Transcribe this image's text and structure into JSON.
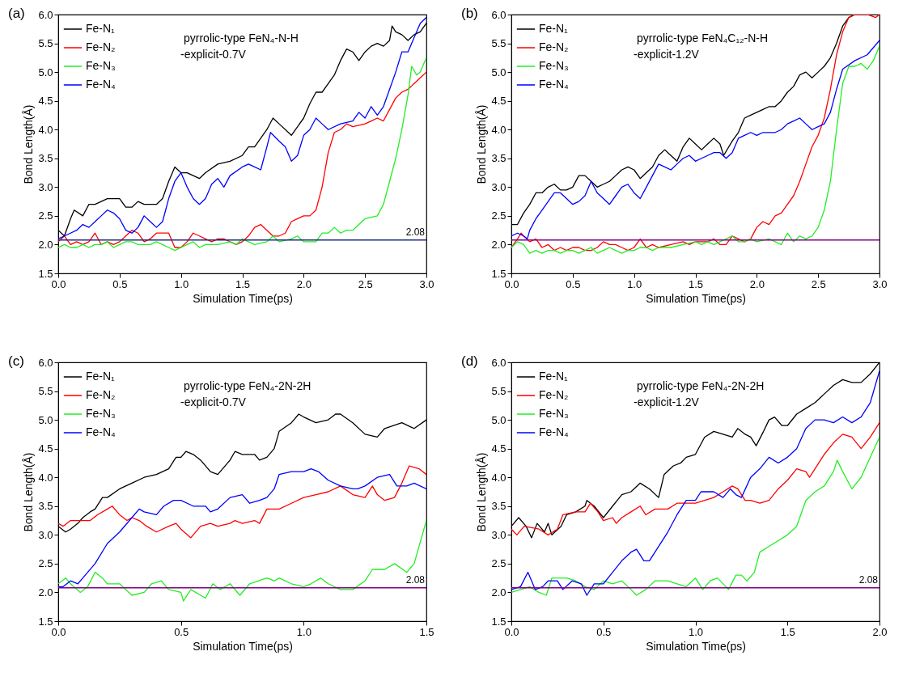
{
  "chart_data": [
    {
      "type": "line",
      "title": "(a)",
      "xlabel": "Simulation Time(ps)",
      "ylabel": "Bond Length(Å)",
      "annotations": [
        "pyrrolic-type FeN₄-N-H",
        "-explicit-0.7V"
      ],
      "legend": "top left",
      "xlim": [
        0,
        3
      ],
      "ylim": [
        1.5,
        6
      ],
      "xticks": [
        {
          "value": 0,
          "label": "0.0"
        },
        0.5,
        {
          "value": 1,
          "label": "1.0"
        },
        1.5,
        {
          "value": 2,
          "label": "2.0"
        },
        2.5,
        {
          "value": 3,
          "label": "3.0"
        }
      ],
      "yticks": [
        1.5,
        {
          "value": 2,
          "label": "2.0"
        },
        2.5,
        {
          "value": 3,
          "label": "3.0"
        },
        3.5,
        {
          "value": 4,
          "label": "4.0"
        },
        4.5,
        {
          "value": 5,
          "label": "5.0"
        },
        5.5,
        {
          "value": 6,
          "label": "6.0"
        }
      ],
      "ref_lines": [
        {
          "axis": "y",
          "value": 2.08,
          "label": "2.08",
          "color": "#1f2a80"
        }
      ],
      "series": [
        {
          "name": "Fe-N₁",
          "color": "#000000",
          "x": [
            0,
            0.05,
            0.1,
            0.13,
            0.2,
            0.25,
            0.3,
            0.35,
            0.4,
            0.45,
            0.5,
            0.55,
            0.6,
            0.65,
            0.7,
            0.8,
            0.85,
            0.9,
            0.95,
            1.0,
            1.05,
            1.1,
            1.15,
            1.2,
            1.3,
            1.4,
            1.5,
            1.55,
            1.6,
            1.7,
            1.75,
            1.8,
            1.9,
            1.95,
            2.0,
            2.05,
            2.1,
            2.15,
            2.2,
            2.25,
            2.3,
            2.35,
            2.4,
            2.45,
            2.5,
            2.55,
            2.6,
            2.65,
            2.7,
            2.72,
            2.75,
            2.8,
            2.85,
            2.9,
            2.95,
            3.0
          ],
          "values": [
            2.25,
            2.15,
            2.45,
            2.6,
            2.5,
            2.7,
            2.7,
            2.75,
            2.8,
            2.8,
            2.8,
            2.65,
            2.65,
            2.75,
            2.7,
            2.7,
            2.8,
            3.1,
            3.35,
            3.25,
            3.25,
            3.2,
            3.15,
            3.25,
            3.4,
            3.45,
            3.55,
            3.7,
            3.7,
            4.0,
            4.2,
            4.1,
            3.9,
            4.05,
            4.2,
            4.45,
            4.65,
            4.65,
            4.8,
            4.95,
            5.2,
            5.4,
            5.35,
            5.2,
            5.35,
            5.45,
            5.5,
            5.45,
            5.55,
            5.8,
            5.7,
            5.65,
            5.55,
            5.65,
            5.7,
            5.85
          ]
        },
        {
          "name": "Fe-N₂",
          "color": "#ff0000",
          "x": [
            0,
            0.05,
            0.1,
            0.15,
            0.2,
            0.25,
            0.3,
            0.35,
            0.4,
            0.45,
            0.5,
            0.55,
            0.6,
            0.65,
            0.7,
            0.75,
            0.8,
            0.85,
            0.9,
            0.95,
            1.0,
            1.05,
            1.1,
            1.15,
            1.2,
            1.25,
            1.3,
            1.35,
            1.4,
            1.45,
            1.5,
            1.55,
            1.6,
            1.65,
            1.7,
            1.75,
            1.8,
            1.85,
            1.9,
            1.95,
            2.0,
            2.05,
            2.1,
            2.15,
            2.2,
            2.25,
            2.3,
            2.35,
            2.4,
            2.5,
            2.55,
            2.6,
            2.65,
            2.7,
            2.75,
            2.8,
            2.85,
            2.9,
            2.95,
            3.0
          ],
          "values": [
            2.05,
            2.15,
            2.0,
            2.05,
            2.0,
            2.05,
            2.2,
            2.0,
            2.05,
            2.0,
            2.05,
            2.15,
            2.25,
            2.2,
            2.05,
            2.1,
            2.2,
            2.2,
            2.2,
            1.95,
            1.95,
            2.05,
            2.2,
            2.15,
            2.1,
            2.05,
            2.1,
            2.1,
            2.05,
            2.0,
            2.05,
            2.15,
            2.3,
            2.35,
            2.25,
            2.15,
            2.15,
            2.2,
            2.4,
            2.45,
            2.5,
            2.5,
            2.6,
            3.0,
            3.6,
            3.95,
            4.0,
            4.1,
            4.05,
            4.1,
            4.15,
            4.2,
            4.15,
            4.35,
            4.55,
            4.65,
            4.7,
            4.8,
            4.9,
            5.0
          ]
        },
        {
          "name": "Fe-N₃",
          "color": "#22ee22",
          "x": [
            0,
            0.05,
            0.1,
            0.15,
            0.2,
            0.25,
            0.3,
            0.35,
            0.4,
            0.45,
            0.5,
            0.55,
            0.6,
            0.65,
            0.7,
            0.75,
            0.8,
            0.85,
            0.9,
            0.95,
            1.0,
            1.05,
            1.1,
            1.15,
            1.2,
            1.3,
            1.4,
            1.45,
            1.5,
            1.55,
            1.6,
            1.7,
            1.75,
            1.8,
            1.9,
            1.95,
            2.0,
            2.1,
            2.15,
            2.2,
            2.25,
            2.3,
            2.35,
            2.4,
            2.45,
            2.5,
            2.6,
            2.65,
            2.7,
            2.75,
            2.8,
            2.85,
            2.88,
            2.92,
            2.95,
            3.0
          ],
          "values": [
            1.95,
            2.0,
            1.95,
            1.95,
            2.0,
            1.95,
            2.0,
            2.0,
            2.05,
            1.95,
            2.0,
            2.05,
            2.05,
            2.0,
            2.0,
            2.0,
            2.05,
            2.0,
            1.95,
            1.9,
            1.95,
            2.0,
            2.05,
            1.95,
            2.0,
            2.0,
            2.05,
            2.0,
            2.1,
            2.05,
            2.0,
            2.05,
            2.15,
            2.05,
            2.1,
            2.15,
            2.05,
            2.05,
            2.2,
            2.2,
            2.3,
            2.2,
            2.25,
            2.25,
            2.35,
            2.45,
            2.5,
            2.7,
            3.1,
            3.5,
            4.0,
            4.6,
            5.1,
            4.95,
            5.0,
            5.25
          ]
        },
        {
          "name": "Fe-N₄",
          "color": "#0000ff",
          "x": [
            0,
            0.05,
            0.1,
            0.15,
            0.2,
            0.25,
            0.3,
            0.35,
            0.4,
            0.45,
            0.5,
            0.55,
            0.6,
            0.65,
            0.7,
            0.75,
            0.8,
            0.85,
            0.9,
            0.95,
            1.0,
            1.05,
            1.1,
            1.15,
            1.2,
            1.25,
            1.3,
            1.35,
            1.4,
            1.5,
            1.55,
            1.6,
            1.65,
            1.7,
            1.73,
            1.8,
            1.85,
            1.9,
            1.95,
            2.0,
            2.05,
            2.1,
            2.15,
            2.2,
            2.3,
            2.4,
            2.45,
            2.5,
            2.55,
            2.6,
            2.65,
            2.7,
            2.75,
            2.8,
            2.85,
            2.9,
            2.95,
            3.0
          ],
          "values": [
            2.1,
            2.15,
            2.2,
            2.25,
            2.35,
            2.3,
            2.4,
            2.5,
            2.6,
            2.55,
            2.45,
            2.25,
            2.2,
            2.3,
            2.5,
            2.4,
            2.3,
            2.4,
            2.8,
            3.1,
            3.25,
            3.0,
            2.8,
            2.7,
            2.8,
            3.05,
            3.15,
            3.0,
            3.2,
            3.35,
            3.4,
            3.35,
            3.3,
            3.7,
            3.95,
            3.8,
            3.7,
            3.45,
            3.55,
            3.9,
            4.0,
            4.2,
            4.1,
            4.0,
            4.1,
            4.15,
            4.3,
            4.2,
            4.4,
            4.25,
            4.4,
            4.7,
            5.0,
            5.35,
            5.35,
            5.6,
            5.85,
            5.95
          ]
        }
      ]
    },
    {
      "type": "line",
      "title": "(b)",
      "xlabel": "Simulation Time(ps)",
      "ylabel": "Bond Length(Å)",
      "annotations": [
        "pyrrolic-type FeN₄C₁₂-N-H",
        "-explicit-1.2V"
      ],
      "legend": "top left",
      "xlim": [
        0,
        3
      ],
      "ylim": [
        1.5,
        6
      ],
      "xticks": [
        {
          "value": 0,
          "label": "0.0"
        },
        0.5,
        {
          "value": 1,
          "label": "1.0"
        },
        1.5,
        {
          "value": 2,
          "label": "2.0"
        },
        2.5,
        {
          "value": 3,
          "label": "3.0"
        }
      ],
      "yticks": [
        1.5,
        {
          "value": 2,
          "label": "2.0"
        },
        2.5,
        {
          "value": 3,
          "label": "3.0"
        },
        3.5,
        {
          "value": 4,
          "label": "4.0"
        },
        4.5,
        {
          "value": 5,
          "label": "5.0"
        },
        5.5,
        {
          "value": 6,
          "label": "6.0"
        }
      ],
      "ref_lines": [
        {
          "axis": "y",
          "value": 2.08,
          "label": null,
          "color": "#800080"
        }
      ],
      "series": [
        {
          "name": "Fe-N₁",
          "color": "#000000",
          "x": [
            0,
            0.05,
            0.1,
            0.15,
            0.2,
            0.25,
            0.3,
            0.35,
            0.4,
            0.45,
            0.5,
            0.55,
            0.6,
            0.65,
            0.7,
            0.75,
            0.8,
            0.85,
            0.9,
            0.95,
            1.0,
            1.05,
            1.1,
            1.15,
            1.2,
            1.25,
            1.3,
            1.35,
            1.4,
            1.45,
            1.5,
            1.55,
            1.6,
            1.65,
            1.7,
            1.73,
            1.8,
            1.85,
            1.9,
            1.95,
            2.0,
            2.05,
            2.1,
            2.15,
            2.2,
            2.25,
            2.3,
            2.35,
            2.4,
            2.45,
            2.5,
            2.55,
            2.6,
            2.65,
            2.7,
            2.75,
            2.8
          ],
          "values": [
            2.35,
            2.35,
            2.55,
            2.7,
            2.9,
            2.9,
            3.0,
            3.05,
            2.95,
            2.95,
            3.0,
            3.2,
            3.2,
            3.1,
            3.0,
            3.05,
            3.1,
            3.2,
            3.3,
            3.35,
            3.3,
            3.15,
            3.25,
            3.35,
            3.55,
            3.65,
            3.55,
            3.45,
            3.7,
            3.85,
            3.75,
            3.65,
            3.75,
            3.85,
            3.75,
            3.55,
            3.8,
            3.95,
            4.2,
            4.25,
            4.3,
            4.35,
            4.4,
            4.4,
            4.5,
            4.65,
            4.75,
            4.95,
            5.0,
            4.9,
            5.0,
            5.1,
            5.25,
            5.5,
            5.8,
            5.95,
            6.0
          ]
        },
        {
          "name": "Fe-N₂",
          "color": "#ff0000",
          "x": [
            0,
            0.05,
            0.08,
            0.1,
            0.15,
            0.2,
            0.25,
            0.3,
            0.35,
            0.4,
            0.45,
            0.5,
            0.55,
            0.6,
            0.65,
            0.7,
            0.75,
            0.8,
            0.85,
            0.9,
            0.95,
            1.0,
            1.05,
            1.1,
            1.15,
            1.2,
            1.3,
            1.4,
            1.45,
            1.5,
            1.6,
            1.65,
            1.7,
            1.75,
            1.8,
            1.85,
            1.9,
            1.95,
            2.0,
            2.05,
            2.1,
            2.15,
            2.2,
            2.25,
            2.3,
            2.35,
            2.4,
            2.45,
            2.5,
            2.55,
            2.6,
            2.65,
            2.7,
            2.75,
            2.8,
            2.9,
            2.97,
            3.0
          ],
          "values": [
            1.95,
            2.1,
            2.2,
            2.15,
            2.05,
            2.1,
            1.95,
            2.0,
            1.9,
            1.95,
            1.9,
            1.95,
            1.95,
            1.9,
            1.9,
            1.95,
            2.05,
            2.0,
            2.0,
            1.95,
            1.9,
            1.95,
            2.1,
            1.95,
            2.0,
            1.95,
            2.0,
            2.05,
            2.0,
            2.05,
            2.05,
            2.1,
            2.0,
            2.0,
            2.15,
            2.1,
            2.05,
            2.1,
            2.3,
            2.4,
            2.35,
            2.5,
            2.55,
            2.7,
            2.85,
            3.1,
            3.4,
            3.7,
            3.9,
            4.2,
            4.7,
            5.3,
            5.7,
            5.95,
            6.0,
            6.0,
            5.95,
            6.0
          ]
        },
        {
          "name": "Fe-N₃",
          "color": "#22ee22",
          "x": [
            0,
            0.05,
            0.1,
            0.15,
            0.2,
            0.25,
            0.3,
            0.35,
            0.4,
            0.45,
            0.5,
            0.55,
            0.6,
            0.65,
            0.7,
            0.75,
            0.8,
            0.85,
            0.9,
            0.95,
            1.0,
            1.05,
            1.1,
            1.15,
            1.2,
            1.3,
            1.4,
            1.5,
            1.55,
            1.6,
            1.65,
            1.7,
            1.75,
            1.8,
            1.85,
            1.9,
            1.95,
            2.0,
            2.1,
            2.15,
            2.2,
            2.25,
            2.3,
            2.35,
            2.4,
            2.45,
            2.5,
            2.55,
            2.6,
            2.65,
            2.7,
            2.75,
            2.8,
            2.85,
            2.9,
            2.95,
            3.0
          ],
          "values": [
            1.95,
            2.05,
            2.0,
            1.85,
            1.9,
            1.85,
            1.9,
            1.9,
            1.85,
            1.9,
            1.9,
            1.85,
            1.9,
            1.95,
            1.85,
            1.9,
            1.95,
            1.9,
            1.85,
            1.9,
            1.9,
            1.95,
            1.95,
            1.9,
            1.95,
            1.95,
            2.0,
            2.05,
            2.0,
            2.05,
            2.0,
            2.05,
            2.1,
            2.15,
            2.05,
            2.05,
            2.1,
            2.05,
            2.1,
            2.05,
            2.0,
            2.2,
            2.05,
            2.15,
            2.1,
            2.15,
            2.3,
            2.6,
            3.1,
            4.0,
            4.8,
            5.1,
            5.1,
            5.15,
            5.05,
            5.2,
            5.45
          ]
        },
        {
          "name": "Fe-N₄",
          "color": "#0000ff",
          "x": [
            0,
            0.05,
            0.1,
            0.13,
            0.15,
            0.2,
            0.25,
            0.3,
            0.35,
            0.4,
            0.45,
            0.5,
            0.55,
            0.6,
            0.65,
            0.7,
            0.75,
            0.8,
            0.85,
            0.9,
            0.95,
            1.0,
            1.05,
            1.1,
            1.15,
            1.2,
            1.25,
            1.3,
            1.35,
            1.4,
            1.45,
            1.5,
            1.55,
            1.6,
            1.65,
            1.7,
            1.75,
            1.8,
            1.85,
            1.9,
            1.95,
            2.0,
            2.05,
            2.1,
            2.15,
            2.2,
            2.25,
            2.3,
            2.35,
            2.4,
            2.45,
            2.5,
            2.55,
            2.6,
            2.65,
            2.7,
            2.8,
            2.9,
            3.0
          ],
          "values": [
            2.15,
            2.2,
            2.15,
            2.1,
            2.25,
            2.45,
            2.6,
            2.75,
            2.9,
            2.9,
            2.8,
            2.7,
            2.75,
            2.85,
            3.1,
            2.9,
            2.8,
            2.7,
            2.85,
            3.0,
            3.05,
            2.9,
            2.8,
            3.0,
            3.2,
            3.4,
            3.35,
            3.3,
            3.4,
            3.5,
            3.55,
            3.45,
            3.5,
            3.55,
            3.6,
            3.6,
            3.5,
            3.6,
            3.85,
            3.9,
            3.95,
            3.9,
            3.95,
            3.95,
            3.95,
            4.0,
            4.1,
            4.15,
            4.2,
            4.1,
            4.0,
            4.05,
            4.1,
            4.3,
            4.7,
            5.05,
            5.2,
            5.3,
            5.55
          ]
        }
      ]
    },
    {
      "type": "line",
      "title": "(c)",
      "xlabel": "Simulation Time(ps)",
      "ylabel": "Bond Length(Å)",
      "annotations": [
        "pyrrolic-type FeN₄-2N-2H",
        "-explicit-0.7V"
      ],
      "legend": "top left",
      "xlim": [
        0,
        1.5
      ],
      "ylim": [
        1.5,
        6
      ],
      "xticks": [
        {
          "value": 0,
          "label": "0.0"
        },
        0.5,
        {
          "value": 1,
          "label": "1.0"
        },
        1.5
      ],
      "yticks": [
        1.5,
        {
          "value": 2,
          "label": "2.0"
        },
        2.5,
        {
          "value": 3,
          "label": "3.0"
        },
        3.5,
        {
          "value": 4,
          "label": "4.0"
        },
        4.5,
        {
          "value": 5,
          "label": "5.0"
        },
        5.5,
        {
          "value": 6,
          "label": "6.0"
        }
      ],
      "ref_lines": [
        {
          "axis": "y",
          "value": 2.08,
          "label": "2.08",
          "color": "#800080"
        }
      ],
      "series": [
        {
          "name": "Fe-N₁",
          "color": "#000000",
          "x": [
            0,
            0.03,
            0.05,
            0.08,
            0.1,
            0.13,
            0.15,
            0.18,
            0.2,
            0.25,
            0.3,
            0.35,
            0.4,
            0.45,
            0.48,
            0.5,
            0.52,
            0.55,
            0.58,
            0.62,
            0.65,
            0.7,
            0.72,
            0.75,
            0.8,
            0.82,
            0.85,
            0.88,
            0.9,
            0.95,
            0.98,
            1.0,
            1.05,
            1.1,
            1.13,
            1.15,
            1.2,
            1.25,
            1.3,
            1.33,
            1.4,
            1.45,
            1.5
          ],
          "values": [
            3.15,
            3.05,
            3.1,
            3.2,
            3.3,
            3.4,
            3.45,
            3.65,
            3.65,
            3.8,
            3.9,
            4.0,
            4.05,
            4.15,
            4.35,
            4.35,
            4.45,
            4.4,
            4.3,
            4.1,
            4.05,
            4.3,
            4.45,
            4.4,
            4.4,
            4.3,
            4.35,
            4.5,
            4.8,
            4.95,
            5.1,
            5.05,
            4.95,
            5.0,
            5.1,
            5.1,
            4.95,
            4.75,
            4.7,
            4.85,
            4.95,
            4.85,
            5.0
          ]
        },
        {
          "name": "Fe-N₂",
          "color": "#ff0000",
          "x": [
            0,
            0.02,
            0.05,
            0.1,
            0.13,
            0.16,
            0.2,
            0.22,
            0.25,
            0.28,
            0.3,
            0.33,
            0.36,
            0.4,
            0.45,
            0.48,
            0.5,
            0.54,
            0.58,
            0.62,
            0.65,
            0.7,
            0.72,
            0.75,
            0.8,
            0.82,
            0.85,
            0.9,
            0.95,
            1.0,
            1.05,
            1.1,
            1.15,
            1.2,
            1.25,
            1.28,
            1.3,
            1.33,
            1.37,
            1.4,
            1.43,
            1.47,
            1.5
          ],
          "values": [
            3.2,
            3.15,
            3.25,
            3.25,
            3.25,
            3.35,
            3.45,
            3.5,
            3.35,
            3.25,
            3.3,
            3.25,
            3.15,
            3.05,
            3.15,
            3.2,
            3.1,
            2.95,
            3.15,
            3.2,
            3.15,
            3.2,
            3.25,
            3.2,
            3.25,
            3.2,
            3.45,
            3.45,
            3.55,
            3.65,
            3.7,
            3.75,
            3.85,
            3.7,
            3.65,
            3.85,
            3.7,
            3.6,
            3.65,
            3.9,
            4.2,
            4.15,
            4.05
          ]
        },
        {
          "name": "Fe-N₃",
          "color": "#22ee22",
          "x": [
            0,
            0.03,
            0.05,
            0.09,
            0.12,
            0.15,
            0.18,
            0.2,
            0.25,
            0.3,
            0.35,
            0.38,
            0.42,
            0.45,
            0.5,
            0.51,
            0.54,
            0.58,
            0.6,
            0.63,
            0.66,
            0.7,
            0.74,
            0.78,
            0.85,
            0.88,
            0.9,
            0.95,
            1.0,
            1.03,
            1.07,
            1.1,
            1.15,
            1.2,
            1.25,
            1.28,
            1.33,
            1.37,
            1.42,
            1.45,
            1.48,
            1.5
          ],
          "values": [
            2.15,
            2.25,
            2.15,
            2.0,
            2.1,
            2.35,
            2.25,
            2.15,
            2.15,
            1.95,
            2.0,
            2.15,
            2.2,
            2.05,
            2.0,
            1.85,
            2.05,
            1.95,
            1.9,
            2.15,
            2.05,
            2.15,
            1.95,
            2.15,
            2.25,
            2.2,
            2.25,
            2.15,
            2.1,
            2.15,
            2.25,
            2.15,
            2.05,
            2.05,
            2.2,
            2.4,
            2.4,
            2.5,
            2.35,
            2.5,
            2.95,
            3.25
          ]
        },
        {
          "name": "Fe-N₄",
          "color": "#0000ff",
          "x": [
            0,
            0.02,
            0.05,
            0.08,
            0.1,
            0.15,
            0.2,
            0.25,
            0.3,
            0.33,
            0.35,
            0.4,
            0.43,
            0.47,
            0.5,
            0.55,
            0.6,
            0.62,
            0.65,
            0.7,
            0.75,
            0.78,
            0.82,
            0.85,
            0.88,
            0.9,
            0.95,
            1.0,
            1.03,
            1.06,
            1.1,
            1.15,
            1.2,
            1.22,
            1.25,
            1.3,
            1.35,
            1.38,
            1.42,
            1.45,
            1.5
          ],
          "values": [
            2.1,
            2.1,
            2.2,
            2.15,
            2.25,
            2.5,
            2.85,
            3.05,
            3.3,
            3.45,
            3.4,
            3.35,
            3.5,
            3.6,
            3.6,
            3.5,
            3.5,
            3.4,
            3.45,
            3.65,
            3.7,
            3.55,
            3.6,
            3.65,
            3.8,
            4.05,
            4.1,
            4.1,
            4.15,
            4.1,
            3.95,
            3.85,
            3.8,
            3.8,
            3.85,
            4.0,
            4.05,
            3.85,
            3.85,
            3.9,
            3.8
          ]
        }
      ]
    },
    {
      "type": "line",
      "title": "(d)",
      "xlabel": "Simulation Time(ps)",
      "ylabel": "Bond Length(Å)",
      "annotations": [
        "pyrrolic-type FeN₄-2N-2H",
        "-explicit-1.2V"
      ],
      "legend": "top left",
      "xlim": [
        0,
        2
      ],
      "ylim": [
        1.5,
        6
      ],
      "xticks": [
        {
          "value": 0,
          "label": "0.0"
        },
        0.5,
        {
          "value": 1,
          "label": "1.0"
        },
        1.5,
        {
          "value": 2,
          "label": "2.0"
        }
      ],
      "yticks": [
        1.5,
        {
          "value": 2,
          "label": "2.0"
        },
        2.5,
        {
          "value": 3,
          "label": "3.0"
        },
        3.5,
        {
          "value": 4,
          "label": "4.0"
        },
        4.5,
        {
          "value": 5,
          "label": "5.0"
        },
        5.5,
        {
          "value": 6,
          "label": "6.0"
        }
      ],
      "ref_lines": [
        {
          "axis": "y",
          "value": 2.08,
          "label": "2.08",
          "color": "#800080"
        }
      ],
      "series": [
        {
          "name": "Fe-N₁",
          "color": "#000000",
          "x": [
            0,
            0.04,
            0.08,
            0.11,
            0.14,
            0.18,
            0.2,
            0.22,
            0.27,
            0.3,
            0.35,
            0.4,
            0.41,
            0.45,
            0.5,
            0.55,
            0.6,
            0.65,
            0.7,
            0.75,
            0.8,
            0.83,
            0.88,
            0.92,
            0.95,
            1.0,
            1.05,
            1.1,
            1.15,
            1.2,
            1.23,
            1.27,
            1.3,
            1.33,
            1.37,
            1.4,
            1.43,
            1.47,
            1.5,
            1.55,
            1.6,
            1.65,
            1.7,
            1.75,
            1.8,
            1.85,
            1.9,
            1.95,
            2.0
          ],
          "values": [
            3.15,
            3.3,
            3.15,
            2.95,
            3.2,
            3.05,
            3.2,
            3.0,
            3.15,
            3.35,
            3.4,
            3.5,
            3.6,
            3.5,
            3.3,
            3.5,
            3.7,
            3.75,
            3.9,
            3.8,
            3.65,
            4.05,
            4.2,
            4.25,
            4.35,
            4.4,
            4.7,
            4.8,
            4.75,
            4.7,
            4.85,
            4.75,
            4.7,
            4.55,
            4.8,
            5.0,
            5.05,
            4.9,
            4.9,
            5.1,
            5.2,
            5.3,
            5.45,
            5.6,
            5.7,
            5.65,
            5.65,
            5.8,
            6.0
          ]
        },
        {
          "name": "Fe-N₂",
          "color": "#ff0000",
          "x": [
            0,
            0.03,
            0.07,
            0.15,
            0.2,
            0.25,
            0.28,
            0.35,
            0.4,
            0.43,
            0.47,
            0.5,
            0.55,
            0.57,
            0.6,
            0.65,
            0.7,
            0.73,
            0.78,
            0.85,
            0.9,
            0.95,
            1.0,
            1.05,
            1.1,
            1.15,
            1.2,
            1.23,
            1.27,
            1.3,
            1.35,
            1.4,
            1.45,
            1.5,
            1.55,
            1.6,
            1.62,
            1.67,
            1.7,
            1.75,
            1.8,
            1.85,
            1.9,
            1.95,
            2.0
          ],
          "values": [
            3.1,
            3.0,
            3.15,
            3.1,
            3.0,
            3.1,
            3.35,
            3.4,
            3.4,
            3.55,
            3.4,
            3.25,
            3.3,
            3.2,
            3.3,
            3.4,
            3.5,
            3.35,
            3.45,
            3.45,
            3.55,
            3.55,
            3.55,
            3.6,
            3.65,
            3.75,
            3.85,
            3.8,
            3.6,
            3.6,
            3.55,
            3.6,
            3.8,
            3.95,
            4.15,
            4.1,
            4.0,
            4.25,
            4.4,
            4.6,
            4.75,
            4.7,
            4.5,
            4.7,
            4.95
          ]
        },
        {
          "name": "Fe-N₃",
          "color": "#22ee22",
          "x": [
            0,
            0.05,
            0.1,
            0.15,
            0.19,
            0.22,
            0.3,
            0.35,
            0.4,
            0.45,
            0.5,
            0.55,
            0.6,
            0.65,
            0.68,
            0.73,
            0.78,
            0.85,
            0.9,
            0.95,
            1.0,
            1.04,
            1.08,
            1.12,
            1.18,
            1.22,
            1.25,
            1.28,
            1.32,
            1.35,
            1.4,
            1.45,
            1.5,
            1.55,
            1.6,
            1.65,
            1.7,
            1.75,
            1.77,
            1.8,
            1.85,
            1.9,
            1.95,
            2.0
          ],
          "values": [
            2.0,
            2.05,
            2.1,
            2.0,
            1.95,
            2.25,
            2.25,
            2.2,
            2.1,
            2.05,
            2.2,
            2.15,
            2.2,
            2.05,
            1.95,
            2.05,
            2.2,
            2.2,
            2.15,
            2.1,
            2.25,
            2.05,
            2.2,
            2.25,
            2.05,
            2.3,
            2.3,
            2.2,
            2.35,
            2.7,
            2.8,
            2.9,
            3.0,
            3.15,
            3.6,
            3.75,
            3.85,
            4.1,
            4.3,
            4.1,
            3.8,
            4.0,
            4.35,
            4.7
          ]
        },
        {
          "name": "Fe-N₄",
          "color": "#0000ff",
          "x": [
            0,
            0.05,
            0.09,
            0.13,
            0.17,
            0.2,
            0.25,
            0.28,
            0.33,
            0.38,
            0.41,
            0.45,
            0.5,
            0.55,
            0.6,
            0.65,
            0.68,
            0.72,
            0.75,
            0.8,
            0.85,
            0.9,
            0.95,
            1.0,
            1.03,
            1.07,
            1.1,
            1.15,
            1.19,
            1.22,
            1.25,
            1.3,
            1.35,
            1.4,
            1.45,
            1.5,
            1.55,
            1.6,
            1.65,
            1.7,
            1.75,
            1.8,
            1.85,
            1.9,
            1.95,
            2.0
          ],
          "values": [
            2.05,
            2.1,
            2.35,
            2.05,
            2.1,
            2.2,
            2.2,
            2.05,
            2.2,
            2.15,
            1.95,
            2.15,
            2.15,
            2.35,
            2.55,
            2.7,
            2.75,
            2.55,
            2.55,
            2.8,
            3.05,
            3.35,
            3.6,
            3.6,
            3.75,
            3.75,
            3.75,
            3.65,
            3.8,
            3.7,
            3.65,
            4.0,
            4.15,
            4.35,
            4.25,
            4.35,
            4.5,
            4.85,
            5.0,
            5.0,
            4.95,
            5.05,
            4.95,
            5.05,
            5.3,
            5.85
          ]
        }
      ]
    }
  ]
}
